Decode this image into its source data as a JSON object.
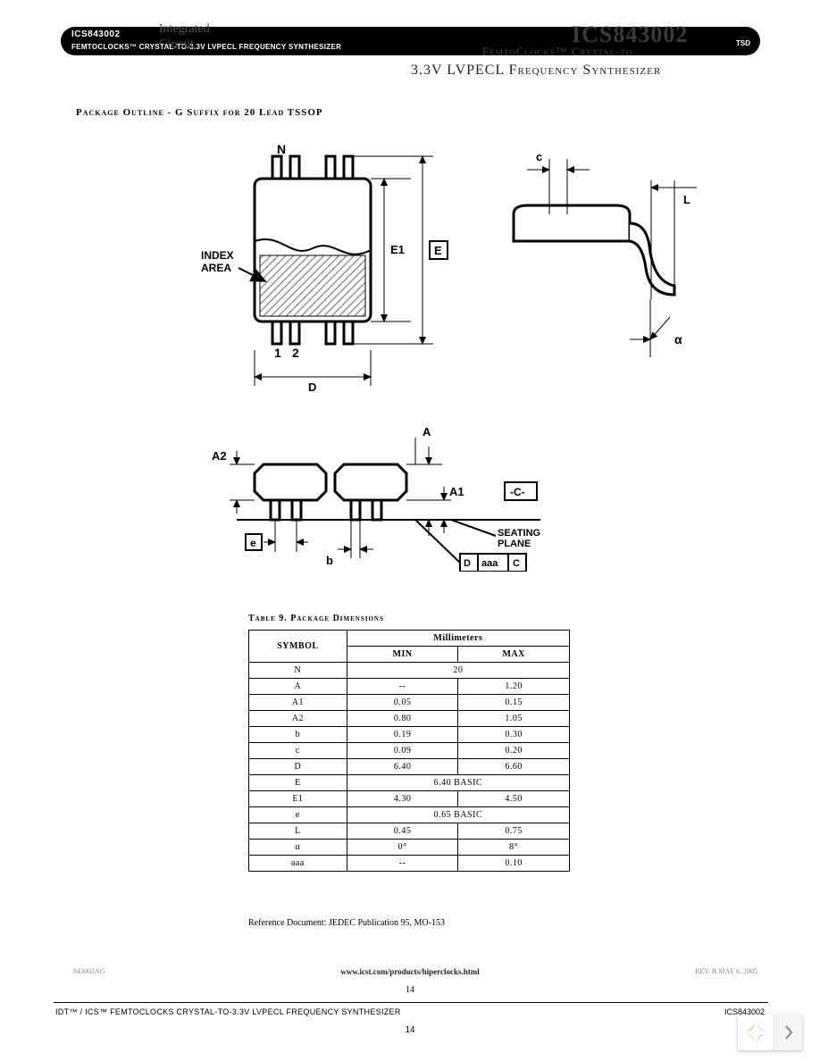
{
  "header": {
    "ics": "ICS843002",
    "subtitle": "FEMTOCLOCKS™ CRYSTAL-TO-3.3V  LVPECL FREQUENCY SYNTHESIZER",
    "tsd": "TSD",
    "integrated": "Integrated",
    "circuit": "Circuit",
    "big_ics": "ICS843002",
    "femto_line": "FemtoClocks™   Crystal-to",
    "lvp_line": "3.3V LVPECL Frequency Synthesizer"
  },
  "package_outline_title": "Package Outline - G Suffix for 20 Lead TSSOP",
  "diagram": {
    "labels": {
      "N": "N",
      "c": "c",
      "L": "L",
      "E1": "E1",
      "E": "E",
      "index_area": "INDEX\nAREA",
      "one": "1",
      "two": "2",
      "D": "D",
      "alpha": "α",
      "A2": "A2",
      "A": "A",
      "A1": "A1",
      "e": "e",
      "b": "b",
      "C_datum": "-C-",
      "seating_plane": "SEATING\nPLANE",
      "tol_box": "D  aaa  C"
    },
    "colors": {
      "stroke": "#000000",
      "hatch": "#6b6b6b",
      "bg": "#ffffff"
    },
    "line_widths": {
      "thick": 3,
      "mid": 2,
      "thin": 1
    },
    "font": {
      "label_pt": 12,
      "bold": true,
      "family": "Arial"
    }
  },
  "table": {
    "title": "Table 9. Package Dimensions",
    "header_symbol": "SYMBOL",
    "header_mm": "Millimeters",
    "header_min": "MIN",
    "header_max": "MAX",
    "rows": [
      {
        "symbol": "N",
        "min": "20",
        "max": "",
        "span": true
      },
      {
        "symbol": "A",
        "min": "--",
        "max": "1.20",
        "span": false
      },
      {
        "symbol": "A1",
        "min": "0.05",
        "max": "0.15",
        "span": false
      },
      {
        "symbol": "A2",
        "min": "0.80",
        "max": "1.05",
        "span": false
      },
      {
        "symbol": "b",
        "min": "0.19",
        "max": "0.30",
        "span": false
      },
      {
        "symbol": "c",
        "min": "0.09",
        "max": "0.20",
        "span": false
      },
      {
        "symbol": "D",
        "min": "6.40",
        "max": "6.60",
        "span": false
      },
      {
        "symbol": "E",
        "min": "6.40 BASIC",
        "max": "",
        "span": true
      },
      {
        "symbol": "E1",
        "min": "4.30",
        "max": "4.50",
        "span": false
      },
      {
        "symbol": "e",
        "min": "0.65 BASIC",
        "max": "",
        "span": true
      },
      {
        "symbol": "L",
        "min": "0.45",
        "max": "0.75",
        "span": false
      },
      {
        "symbol": "α",
        "min": "0°",
        "max": "8°",
        "span": false
      },
      {
        "symbol": "aaa",
        "min": "--",
        "max": "0.10",
        "span": false
      }
    ],
    "reference": "Reference Document:  JEDEC Publication 95, MO-153"
  },
  "footer": {
    "tiny_left": "843002AG",
    "url": "www.icst.com/products/hiperclocks.html",
    "tiny_right": "REV. B  MAY 6, 2005",
    "page_a": "14",
    "left": "IDT™ / ICS™  FEMTOCLOCKS CRYSTAL-TO-3.3V  LVPECL FREQUENCY SYNTHESIZER",
    "right": "ICS843002",
    "page_b": "14"
  },
  "nav": {
    "logo_colors": [
      "#f9b233",
      "#e94e1b",
      "#5a2d82",
      "#7fba00"
    ]
  }
}
